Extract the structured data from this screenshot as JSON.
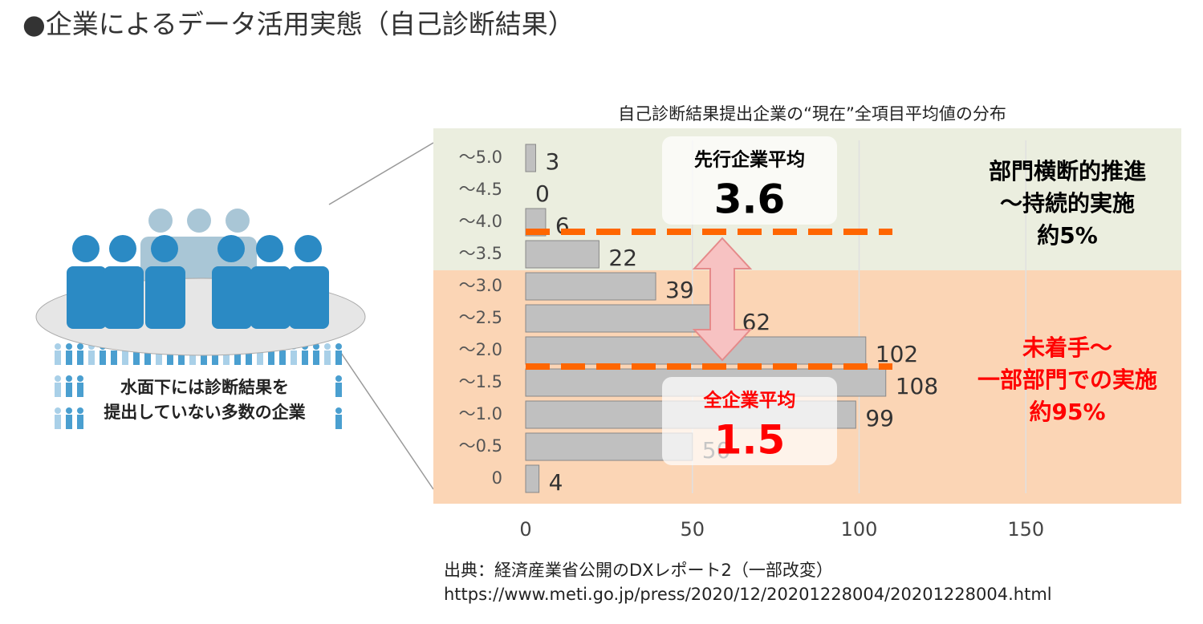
{
  "title": "●企業によるデータ活用実態（自己診断結果）",
  "illustration_text": [
    "水面下には診断結果を",
    "提出していない多数の企業"
  ],
  "source": [
    "出典：経済産業省公開のDXレポート2（一部改変）",
    "https://www.meti.go.jp/press/2020/12/20201228004/20201228004.html"
  ],
  "chart_data": {
    "type": "barh",
    "title": "自己診断結果提出企業の“現在”全項目平均値の分布",
    "categories": [
      "～5.0",
      "～4.5",
      "～4.0",
      "～3.5",
      "～3.0",
      "～2.5",
      "～2.0",
      "～1.5",
      "～1.0",
      "～0.5",
      "0"
    ],
    "values": [
      3,
      0,
      6,
      22,
      39,
      62,
      102,
      108,
      99,
      50,
      4
    ],
    "color": "#c0c0c0",
    "xlim": [
      0,
      200
    ],
    "xticks": [
      0,
      50,
      100,
      150
    ],
    "grid": true,
    "averages": [
      {
        "label": "先行企業平均",
        "value": 3.6,
        "color": "#000000",
        "line_color": "#ff6600"
      },
      {
        "label": "全企業平均",
        "value": 1.5,
        "color": "#ff0000",
        "line_color": "#ff6600"
      }
    ],
    "zones": [
      {
        "lines": [
          "部門横断的推進",
          "～持続的実施",
          "約5%"
        ],
        "color": "#000000",
        "fill": "#ebeedf"
      },
      {
        "lines": [
          "未着手～",
          "一部部門での実施",
          "約95%"
        ],
        "color": "#ff0000",
        "fill": "#fbd5b5"
      }
    ]
  }
}
